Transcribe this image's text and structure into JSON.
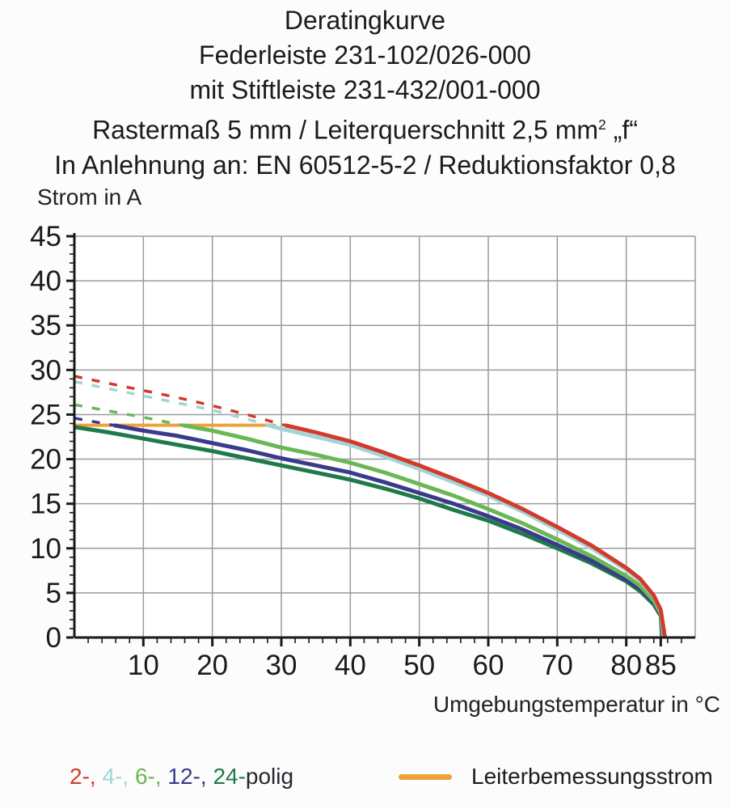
{
  "title": {
    "line1": "Deratingkurve",
    "line2": "Federleiste 231-102/026-000",
    "line3": "mit Stiftleiste 231-432/001-000",
    "line4_pre": "Rastermaß 5 mm / Leiterquerschnitt 2,5 mm",
    "line4_sup": "2",
    "line4_post": " „f“",
    "line5": "In Anlehnung an: EN 60512-5-2 / Reduktionsfaktor 0,8"
  },
  "chart_data": {
    "type": "line",
    "title": "Deratingkurve",
    "xlabel": "Umgebungstemperatur in °C",
    "ylabel": "Strom in A",
    "xlim": [
      0,
      90
    ],
    "ylim": [
      0,
      45
    ],
    "x_major_ticks": [
      10,
      20,
      30,
      40,
      50,
      60,
      70,
      80,
      85
    ],
    "x_minor_step": 2,
    "y_major_ticks": [
      0,
      5,
      10,
      15,
      20,
      25,
      30,
      35,
      40,
      45
    ],
    "y_minor_step": 1,
    "grid": {
      "x_lines": [
        10,
        20,
        30,
        40,
        50,
        60,
        70,
        80,
        90
      ],
      "y_lines": [
        5,
        10,
        15,
        20,
        25,
        30,
        35,
        40,
        45
      ],
      "color": "#9b9b9b"
    },
    "axis_color": "#1a1a1a",
    "tick_label_color": "#1b1b1b",
    "style_note": "curves are dashed above the conductor rated current (orange line) and solid below it",
    "reference_line": {
      "name": "Leiterbemessungsstrom",
      "color": "#f0a13c",
      "value": 23.8,
      "x_range": [
        0,
        29
      ]
    },
    "series": [
      {
        "name": "24-polig",
        "color": "#1e7a4a",
        "points": [
          [
            0,
            23.6
          ],
          [
            5,
            23.0
          ],
          [
            10,
            22.3
          ],
          [
            15,
            21.6
          ],
          [
            20,
            20.9
          ],
          [
            25,
            20.1
          ],
          [
            30,
            19.3
          ],
          [
            35,
            18.5
          ],
          [
            40,
            17.7
          ],
          [
            45,
            16.7
          ],
          [
            50,
            15.6
          ],
          [
            55,
            14.3
          ],
          [
            60,
            13.1
          ],
          [
            65,
            11.6
          ],
          [
            70,
            10.0
          ],
          [
            75,
            8.3
          ],
          [
            80,
            6.3
          ],
          [
            82,
            5.2
          ],
          [
            84,
            3.7
          ],
          [
            85,
            2.4
          ],
          [
            85.2,
            0
          ]
        ]
      },
      {
        "name": "12-polig",
        "color": "#3a3a8c",
        "points": [
          [
            0,
            24.6
          ],
          [
            5,
            23.9
          ],
          [
            10,
            23.2
          ],
          [
            15,
            22.6
          ],
          [
            20,
            21.8
          ],
          [
            25,
            21.0
          ],
          [
            30,
            20.1
          ],
          [
            35,
            19.3
          ],
          [
            40,
            18.5
          ],
          [
            45,
            17.4
          ],
          [
            50,
            16.2
          ],
          [
            55,
            15.0
          ],
          [
            60,
            13.6
          ],
          [
            65,
            12.1
          ],
          [
            70,
            10.4
          ],
          [
            75,
            8.6
          ],
          [
            80,
            6.5
          ],
          [
            82,
            5.5
          ],
          [
            84,
            3.9
          ],
          [
            85,
            2.6
          ],
          [
            85.3,
            0
          ]
        ]
      },
      {
        "name": "6-polig",
        "color": "#6ab755",
        "points": [
          [
            0,
            26.1
          ],
          [
            5,
            25.4
          ],
          [
            10,
            24.7
          ],
          [
            15,
            23.9
          ],
          [
            20,
            23.2
          ],
          [
            25,
            22.3
          ],
          [
            30,
            21.3
          ],
          [
            35,
            20.5
          ],
          [
            40,
            19.6
          ],
          [
            45,
            18.5
          ],
          [
            50,
            17.2
          ],
          [
            55,
            15.9
          ],
          [
            60,
            14.4
          ],
          [
            65,
            12.8
          ],
          [
            70,
            11.0
          ],
          [
            75,
            9.1
          ],
          [
            80,
            6.9
          ],
          [
            82,
            5.8
          ],
          [
            84,
            4.1
          ],
          [
            85,
            2.7
          ],
          [
            85.4,
            0
          ]
        ]
      },
      {
        "name": "4-polig",
        "color": "#a2d4d8",
        "points": [
          [
            0,
            28.7
          ],
          [
            5,
            27.9
          ],
          [
            10,
            27.1
          ],
          [
            15,
            26.3
          ],
          [
            20,
            25.5
          ],
          [
            25,
            24.5
          ],
          [
            30,
            23.4
          ],
          [
            35,
            22.5
          ],
          [
            40,
            21.6
          ],
          [
            45,
            20.3
          ],
          [
            50,
            18.9
          ],
          [
            55,
            17.4
          ],
          [
            60,
            15.9
          ],
          [
            65,
            14.1
          ],
          [
            70,
            12.1
          ],
          [
            75,
            10.0
          ],
          [
            80,
            7.6
          ],
          [
            82,
            6.4
          ],
          [
            84,
            4.6
          ],
          [
            85,
            3.0
          ],
          [
            85.5,
            0
          ]
        ]
      },
      {
        "name": "2-polig",
        "color": "#d23b2c",
        "points": [
          [
            0,
            29.3
          ],
          [
            5,
            28.5
          ],
          [
            10,
            27.7
          ],
          [
            15,
            26.9
          ],
          [
            20,
            26.0
          ],
          [
            25,
            25.0
          ],
          [
            30,
            23.9
          ],
          [
            35,
            23.0
          ],
          [
            40,
            22.0
          ],
          [
            45,
            20.7
          ],
          [
            50,
            19.3
          ],
          [
            55,
            17.8
          ],
          [
            60,
            16.2
          ],
          [
            65,
            14.4
          ],
          [
            70,
            12.4
          ],
          [
            75,
            10.3
          ],
          [
            80,
            7.8
          ],
          [
            82,
            6.6
          ],
          [
            84,
            4.7
          ],
          [
            85,
            3.1
          ],
          [
            85.6,
            0
          ]
        ]
      }
    ]
  },
  "legend": {
    "poles": {
      "parts": [
        {
          "text": "2-, ",
          "series": "2-polig"
        },
        {
          "text": "4-, ",
          "series": "4-polig"
        },
        {
          "text": "6-, ",
          "series": "6-polig"
        },
        {
          "text": "12-, ",
          "series": "12-polig"
        },
        {
          "text": "24-",
          "series": "24-polig"
        },
        {
          "text": "polig",
          "series": null
        }
      ],
      "text_color": "#26262e"
    },
    "reference_label": "Leiterbemessungsstrom"
  }
}
